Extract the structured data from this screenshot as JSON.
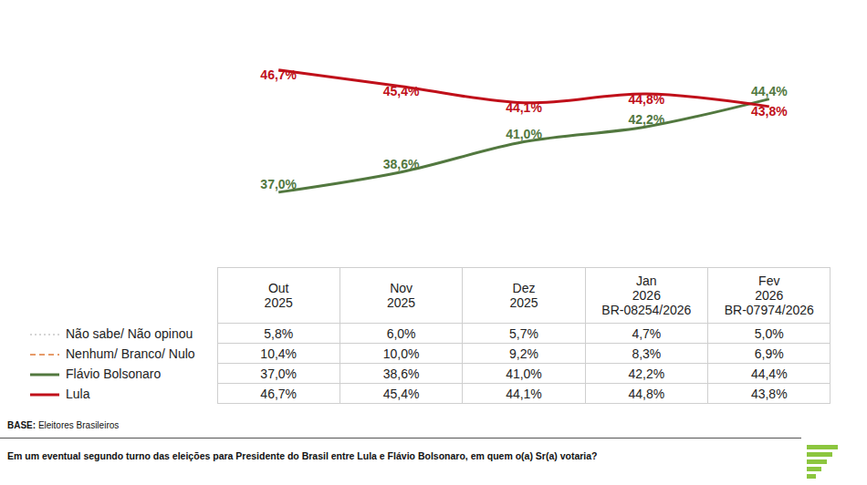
{
  "chart_data": {
    "type": "line",
    "categories": [
      "Out 2025",
      "Nov 2025",
      "Dez 2025",
      "Jan 2026",
      "Fev 2026"
    ],
    "ylim": [
      32,
      49
    ],
    "tick_labels": false,
    "grid": false,
    "data_labels": true,
    "series": [
      {
        "name": "Flávio Bolsonaro",
        "color": "#52783f",
        "line_style": "solid",
        "values": [
          37.0,
          38.6,
          41.0,
          42.2,
          44.4
        ],
        "value_labels": [
          "37,0%",
          "38,6%",
          "41,0%",
          "42,2%",
          "44,4%"
        ]
      },
      {
        "name": "Lula",
        "color": "#c0101a",
        "line_style": "solid",
        "values": [
          46.7,
          45.4,
          44.1,
          44.8,
          43.8
        ],
        "value_labels": [
          "46,7%",
          "45,4%",
          "44,1%",
          "44,8%",
          "43,8%"
        ]
      }
    ]
  },
  "table": {
    "codes": [
      null,
      null,
      null,
      "BR-08254/2026",
      "BR-07974/2026"
    ],
    "rows": [
      {
        "name": "Não sabe/ Não opinou",
        "color": "#c8c8c8",
        "line_style": "dot",
        "values": [
          5.8,
          6.0,
          5.7,
          4.7,
          5.0
        ],
        "value_labels": [
          "5,8%",
          "6,0%",
          "5,7%",
          "4,7%",
          "5,0%"
        ]
      },
      {
        "name": "Nenhum/ Branco/ Nulo",
        "color": "#e07b39",
        "line_style": "dash",
        "values": [
          10.4,
          10.0,
          9.2,
          8.3,
          6.9
        ],
        "value_labels": [
          "10,4%",
          "10,0%",
          "9,2%",
          "8,3%",
          "6,9%"
        ]
      }
    ]
  },
  "footer": {
    "base_label": "BASE:",
    "base": "Eleitores Brasileiros",
    "question": "Em um eventual segundo turno das eleições para Presidente do Brasil entre Lula e Flávio Bolsonaro, em quem o(a) Sr(a) votaria?"
  }
}
